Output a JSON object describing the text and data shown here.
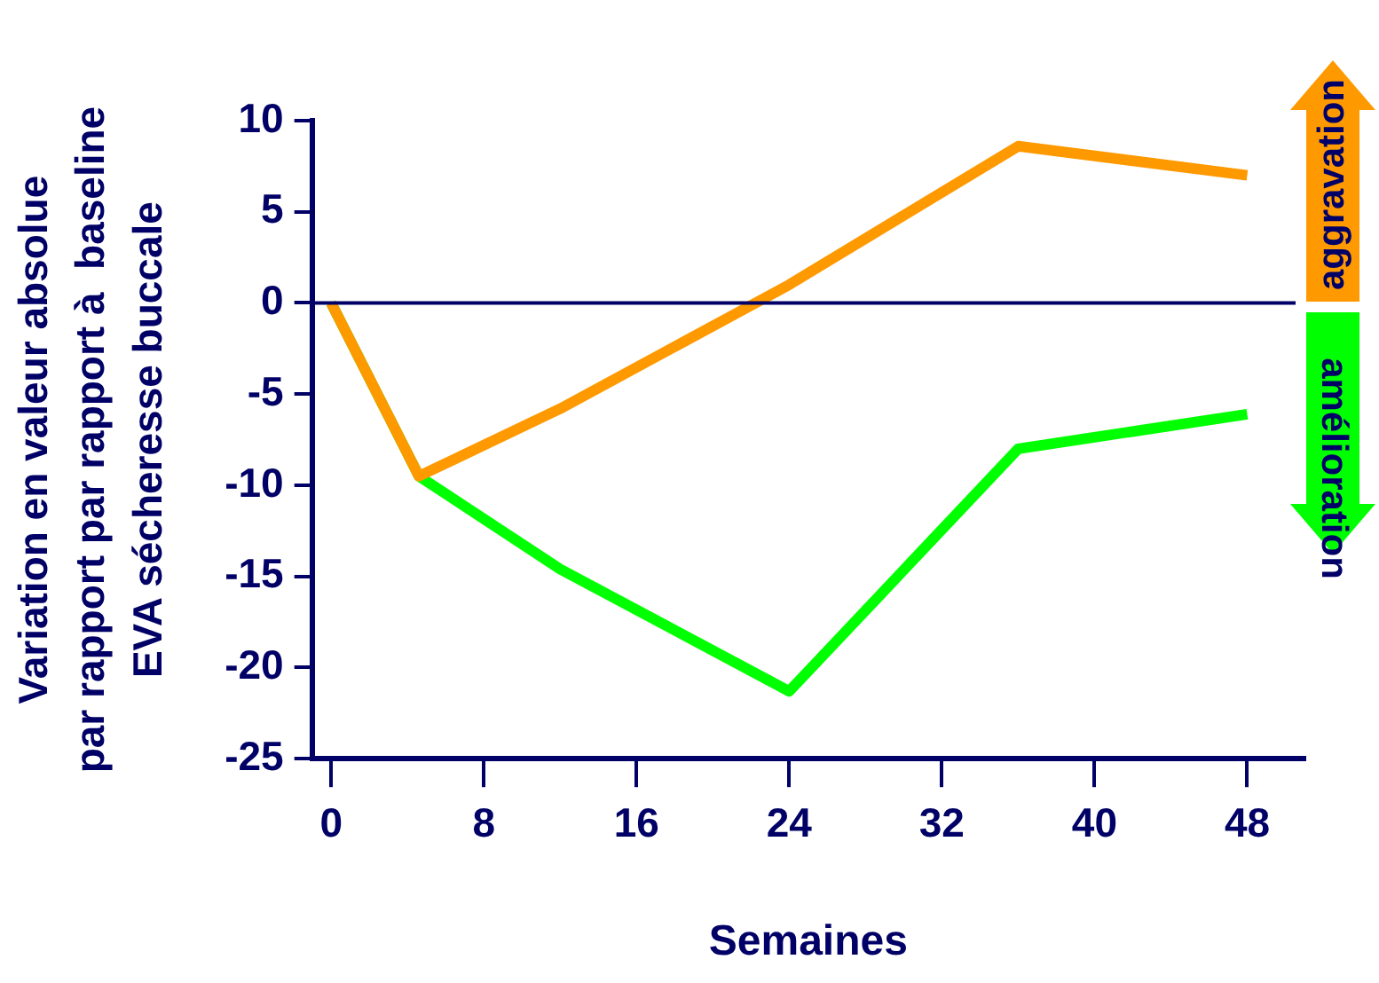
{
  "chart_data": {
    "type": "line",
    "ylabel": "Variation en valeur absolue\npar rapport par rapport à  baseline\nEVA sécheresse buccale",
    "xlabel": "Semaines",
    "x": [
      0,
      4.6,
      12,
      24,
      36,
      48
    ],
    "series": [
      {
        "color": "#00ff00",
        "values": [
          0,
          -9.5,
          -14.6,
          -21.3,
          -8.0,
          -6.1
        ]
      },
      {
        "color": "#ff9900",
        "values": [
          0,
          -9.5,
          -5.8,
          1.0,
          8.6,
          7.0
        ]
      }
    ],
    "xlim": [
      -1,
      51
    ],
    "xticks": [
      0,
      8,
      16,
      24,
      32,
      40,
      48
    ],
    "ylim": [
      -25,
      10
    ],
    "yticks": [
      10,
      5,
      0,
      -5,
      -10,
      -15,
      -20,
      -25
    ],
    "ref_lines": [
      {
        "axis": "y",
        "value": 0,
        "color": "#000066"
      }
    ],
    "grid": false,
    "legend": false,
    "marker": "none",
    "line_style": "solid",
    "annotations": [
      "aggravation",
      "amélioration"
    ]
  }
}
